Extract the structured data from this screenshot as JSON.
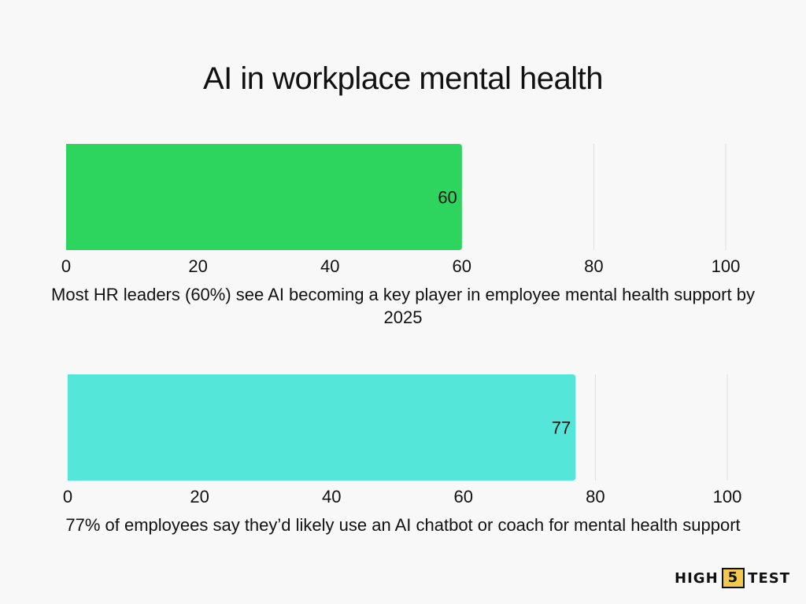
{
  "title": "AI in workplace mental health",
  "colors": {
    "bar1": "#2dd55f",
    "bar2": "#55e6da",
    "gridline": "#dddddd",
    "logo_accent": "#f2c94c"
  },
  "chart_data": [
    {
      "type": "bar",
      "orientation": "horizontal",
      "categories": [
        ""
      ],
      "values": [
        60
      ],
      "data_labels": [
        "60"
      ],
      "xlim": [
        0,
        100
      ],
      "xticks": [
        "0",
        "20",
        "40",
        "60",
        "80",
        "100"
      ],
      "caption": "Most HR leaders (60%) see AI becoming a key player in employee mental health support by 2025",
      "color": "#2dd55f",
      "grid": true
    },
    {
      "type": "bar",
      "orientation": "horizontal",
      "categories": [
        ""
      ],
      "values": [
        77
      ],
      "data_labels": [
        "77"
      ],
      "xlim": [
        0,
        100
      ],
      "xticks": [
        "0",
        "20",
        "40",
        "60",
        "80",
        "100"
      ],
      "caption": "77% of employees say they’d likely use an AI chatbot or coach for mental health support",
      "color": "#55e6da",
      "grid": true
    }
  ],
  "logo": {
    "left": "HIGH",
    "number": "5",
    "right": "TEST"
  }
}
